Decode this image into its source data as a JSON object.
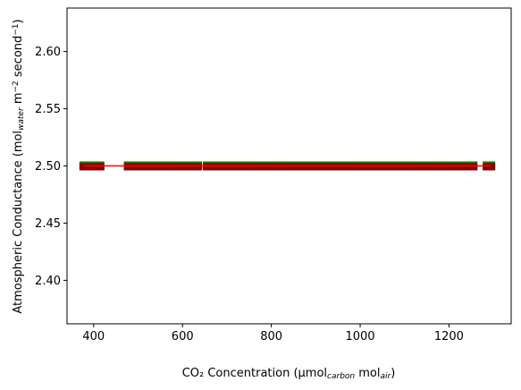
{
  "chart_data": {
    "type": "scatter",
    "xlabel": "CO₂ Concentration (μmol<sub>carbon</sub> mol<sub>air</sub>)",
    "ylabel": "Atmospheric Conductance (mol<sub>water</sub> m<sup>−2</sup> second<sup>−1</sup>)",
    "xlim": [
      340,
      1340
    ],
    "ylim": [
      2.362,
      2.638
    ],
    "x_ticks": [
      400,
      600,
      800,
      1000,
      1200
    ],
    "y_ticks": [
      2.4,
      2.45,
      2.5,
      2.55,
      2.6
    ],
    "x_tick_labels": [
      "400",
      "600",
      "800",
      "1000",
      "1200"
    ],
    "y_tick_labels": [
      "2.40",
      "2.45",
      "2.50",
      "2.55",
      "2.60"
    ],
    "grid": false,
    "series": [
      {
        "kind": "scatter-square",
        "color": "#008000",
        "y": 2.5,
        "x": [
          378,
          386,
          396,
          406,
          414,
          478,
          486,
          494,
          502,
          512,
          522,
          532,
          542,
          552,
          562,
          572,
          582,
          592,
          604,
          614,
          624,
          634,
          656,
          666,
          676,
          686,
          696,
          706,
          716,
          726,
          736,
          746,
          756,
          766,
          776,
          786,
          796,
          806,
          816,
          826,
          836,
          846,
          856,
          866,
          876,
          886,
          896,
          906,
          916,
          926,
          936,
          946,
          956,
          966,
          976,
          986,
          996,
          1006,
          1016,
          1026,
          1036,
          1046,
          1056,
          1066,
          1076,
          1086,
          1096,
          1106,
          1116,
          1126,
          1136,
          1146,
          1156,
          1166,
          1176,
          1186,
          1196,
          1206,
          1216,
          1226,
          1236,
          1246,
          1254,
          1286,
          1294
        ]
      },
      {
        "kind": "scatter-square",
        "color": "#8b0000",
        "y": 2.5,
        "x": [
          378,
          386,
          396,
          406,
          414,
          478,
          486,
          494,
          502,
          512,
          522,
          532,
          542,
          552,
          562,
          572,
          582,
          592,
          604,
          614,
          624,
          634,
          656,
          666,
          676,
          686,
          696,
          706,
          716,
          726,
          736,
          746,
          756,
          766,
          776,
          786,
          796,
          806,
          816,
          826,
          836,
          846,
          856,
          866,
          876,
          886,
          896,
          906,
          916,
          926,
          936,
          946,
          956,
          966,
          976,
          986,
          996,
          1006,
          1016,
          1026,
          1036,
          1046,
          1056,
          1066,
          1076,
          1086,
          1096,
          1106,
          1116,
          1126,
          1136,
          1146,
          1156,
          1166,
          1176,
          1186,
          1196,
          1206,
          1216,
          1226,
          1236,
          1246,
          1254,
          1286,
          1294
        ]
      },
      {
        "kind": "line",
        "color": "#ff0000",
        "x": [
          378,
          1294
        ],
        "y": [
          2.5,
          2.5
        ]
      }
    ]
  }
}
